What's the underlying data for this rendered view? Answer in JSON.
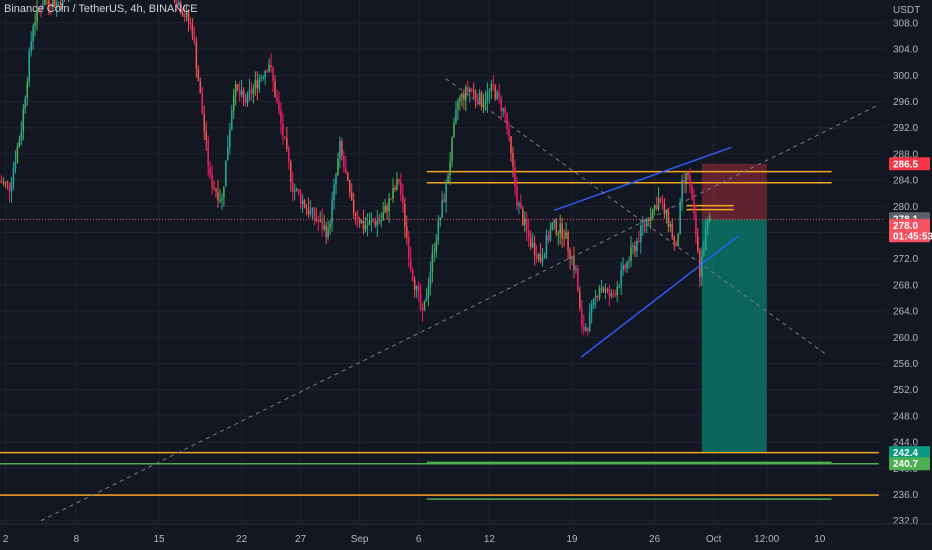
{
  "header": {
    "title": "Binance Coin / TetherUS, 4h, BINANCE"
  },
  "chart_data": {
    "type": "candlestick",
    "symbol": "Binance Coin / TetherUS",
    "interval": "4h",
    "exchange": "BINANCE",
    "currency_label": "USDT",
    "ylim": [
      231.5,
      311.5
    ],
    "y_ticks": [
      232.0,
      236.0,
      240.0,
      244.0,
      248.0,
      252.0,
      256.0,
      260.0,
      264.0,
      268.0,
      272.0,
      276.0,
      280.0,
      284.0,
      288.0,
      292.0,
      296.0,
      300.0,
      304.0,
      308.0
    ],
    "x_ticks": [
      {
        "label": "2",
        "day": 2
      },
      {
        "label": "8",
        "day": 8
      },
      {
        "label": "15",
        "day": 15
      },
      {
        "label": "22",
        "day": 22
      },
      {
        "label": "27",
        "day": 27
      },
      {
        "label": "Sep",
        "day": 32
      },
      {
        "label": "6",
        "day": 37
      },
      {
        "label": "12",
        "day": 43
      },
      {
        "label": "19",
        "day": 50
      },
      {
        "label": "26",
        "day": 57
      },
      {
        "label": "Oct",
        "day": 62
      },
      {
        "label": "12:00",
        "day": 66.5
      },
      {
        "label": "10",
        "day": 71
      }
    ],
    "price_path": [
      {
        "day": 1.5,
        "price": 284
      },
      {
        "day": 2.5,
        "price": 283
      },
      {
        "day": 3.5,
        "price": 292
      },
      {
        "day": 4.5,
        "price": 308
      },
      {
        "day": 5.5,
        "price": 312
      },
      {
        "day": 6.5,
        "price": 311
      },
      {
        "day": 7.5,
        "price": 312
      },
      {
        "day": 9,
        "price": 320
      },
      {
        "day": 16,
        "price": 314
      },
      {
        "day": 18,
        "price": 307
      },
      {
        "day": 19.5,
        "price": 284
      },
      {
        "day": 20.5,
        "price": 281
      },
      {
        "day": 21.5,
        "price": 298
      },
      {
        "day": 22.5,
        "price": 296
      },
      {
        "day": 24.5,
        "price": 302
      },
      {
        "day": 26.5,
        "price": 283
      },
      {
        "day": 28,
        "price": 279
      },
      {
        "day": 29.5,
        "price": 276
      },
      {
        "day": 30.5,
        "price": 289
      },
      {
        "day": 31.5,
        "price": 280
      },
      {
        "day": 32.5,
        "price": 277
      },
      {
        "day": 34,
        "price": 278
      },
      {
        "day": 35.5,
        "price": 284
      },
      {
        "day": 36.5,
        "price": 271
      },
      {
        "day": 37.5,
        "price": 263
      },
      {
        "day": 38.5,
        "price": 274
      },
      {
        "day": 39.5,
        "price": 283
      },
      {
        "day": 40.5,
        "price": 296
      },
      {
        "day": 41.5,
        "price": 298
      },
      {
        "day": 42.5,
        "price": 296
      },
      {
        "day": 43.5,
        "price": 298
      },
      {
        "day": 44.5,
        "price": 294
      },
      {
        "day": 45.5,
        "price": 281
      },
      {
        "day": 46.5,
        "price": 275
      },
      {
        "day": 47.5,
        "price": 272
      },
      {
        "day": 48.5,
        "price": 277
      },
      {
        "day": 49.5,
        "price": 276
      },
      {
        "day": 50.5,
        "price": 270
      },
      {
        "day": 51,
        "price": 261
      },
      {
        "day": 51.5,
        "price": 262
      },
      {
        "day": 52.5,
        "price": 268
      },
      {
        "day": 53.5,
        "price": 266
      },
      {
        "day": 54.5,
        "price": 270
      },
      {
        "day": 55.5,
        "price": 274
      },
      {
        "day": 56.5,
        "price": 278
      },
      {
        "day": 57.5,
        "price": 281
      },
      {
        "day": 58.5,
        "price": 277
      },
      {
        "day": 59,
        "price": 273
      },
      {
        "day": 59.5,
        "price": 283
      },
      {
        "day": 60,
        "price": 285
      },
      {
        "day": 60.5,
        "price": 278
      },
      {
        "day": 61,
        "price": 270
      },
      {
        "day": 61.5,
        "price": 276
      },
      {
        "day": 61.8,
        "price": 278
      }
    ],
    "horizontal_levels": [
      {
        "price": 285.3,
        "color": "#f5a623",
        "start_day": 37.7,
        "end_day": 72
      },
      {
        "price": 283.6,
        "color": "#f5a623",
        "start_day": 37.7,
        "end_day": 72
      },
      {
        "price": 280.1,
        "color": "#f5a623",
        "start_day": 59.7,
        "end_day": 63.7
      },
      {
        "price": 279.5,
        "color": "#f5a623",
        "start_day": 59.7,
        "end_day": 63.7
      },
      {
        "price": 242.4,
        "color": "#f5a623",
        "start_day": 0,
        "end_day": 76
      },
      {
        "price": 240.7,
        "color": "#4caf50",
        "start_day": 0,
        "end_day": 76
      },
      {
        "price": 240.9,
        "color": "#4caf50",
        "start_day": 37.7,
        "end_day": 72
      },
      {
        "price": 235.9,
        "color": "#f5a623",
        "start_day": 0,
        "end_day": 76
      },
      {
        "price": 235.3,
        "color": "#4caf50",
        "start_day": 37.7,
        "end_day": 72
      }
    ],
    "trendlines": [
      {
        "from": {
          "day": 48.5,
          "price": 279.4
        },
        "to": {
          "day": 63.5,
          "price": 289.0
        },
        "color": "#2962ff",
        "style": "solid"
      },
      {
        "from": {
          "day": 50.8,
          "price": 257.0
        },
        "to": {
          "day": 64.1,
          "price": 275.5
        },
        "color": "#2962ff",
        "style": "solid"
      },
      {
        "from": {
          "day": 5.0,
          "price": 232.0
        },
        "to": {
          "day": 76.0,
          "price": 295.5
        },
        "color": "#787b86",
        "style": "dashed"
      },
      {
        "from": {
          "day": 39.3,
          "price": 299.5
        },
        "to": {
          "day": 71.6,
          "price": 257.3
        },
        "color": "#787b86",
        "style": "dashed"
      }
    ],
    "position": {
      "type": "short",
      "start_day": 61.0,
      "end_day": 66.5,
      "entry": 278.0,
      "stop": 286.5,
      "target": 242.4
    },
    "price_labels": [
      {
        "text": "286.5",
        "price": 286.5,
        "bg": "#f23645",
        "fg": "#ffffff"
      },
      {
        "text": "278.1",
        "price": 278.1,
        "bg": "#5d606b",
        "fg": "#ffffff"
      },
      {
        "text": "278.0",
        "price": 277.1,
        "bg": "#f7525f",
        "fg": "#ffffff"
      },
      {
        "text": "01:45:53",
        "price": 275.5,
        "bg": "#f7525f",
        "fg": "#ffffff"
      },
      {
        "text": "242.4",
        "price": 242.4,
        "bg": "#089981",
        "fg": "#ffffff"
      },
      {
        "text": "240.7",
        "price": 240.7,
        "bg": "#4caf50",
        "fg": "#ffffff"
      }
    ],
    "current_price_line": 278.0,
    "colors": {
      "background": "#131722",
      "grid": "#1f2330",
      "up": "#26a69a",
      "up_alt": "#4caf50",
      "down": "#ef5350",
      "down_alt": "#e91e63",
      "position_loss": "#f23645",
      "position_profit": "#089981"
    }
  }
}
